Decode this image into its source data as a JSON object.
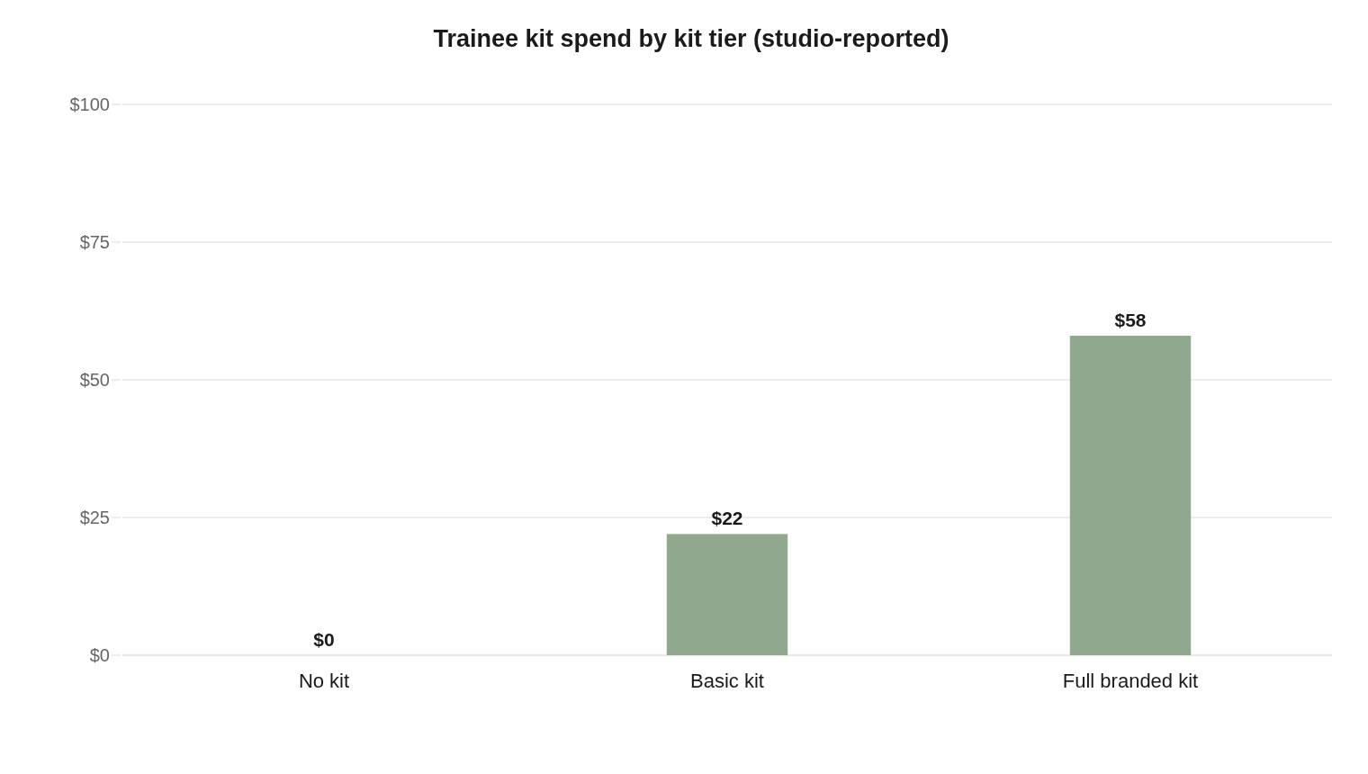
{
  "chart_data": {
    "type": "bar",
    "title": "Trainee kit spend by kit tier (studio-reported)",
    "categories": [
      "No kit",
      "Basic kit",
      "Full branded kit"
    ],
    "values": [
      0,
      22,
      58
    ],
    "value_labels": [
      "$0",
      "$22",
      "$58"
    ],
    "color": "#8fa88e",
    "ylim": [
      0,
      100
    ],
    "yticks": [
      {
        "value": 0,
        "label": "$0"
      },
      {
        "value": 25,
        "label": "$25"
      },
      {
        "value": 50,
        "label": "$50"
      },
      {
        "value": 75,
        "label": "$75"
      },
      {
        "value": 100,
        "label": "$100"
      }
    ],
    "grid": "y"
  }
}
